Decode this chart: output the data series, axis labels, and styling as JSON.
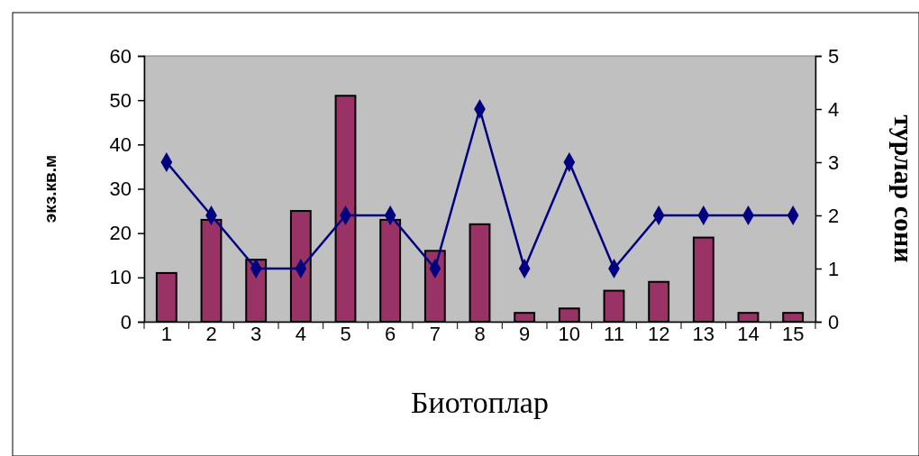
{
  "chart_data": {
    "type": "bar",
    "xlabel": "Биотоплар",
    "ylabel": "экз.кв.м",
    "y2label": "турлар сони",
    "categories": [
      "1",
      "2",
      "3",
      "4",
      "5",
      "6",
      "7",
      "8",
      "9",
      "10",
      "11",
      "12",
      "13",
      "14",
      "15"
    ],
    "series": [
      {
        "color": "#993366",
        "values": [
          11,
          23,
          14,
          25,
          51,
          23,
          16,
          22,
          2,
          3,
          7,
          9,
          19,
          2,
          2
        ]
      },
      {
        "type": "line",
        "axis": "y2",
        "color": "#000080",
        "marker": "diamond",
        "values": [
          3,
          2,
          1,
          1,
          2,
          2,
          1,
          4,
          1,
          3,
          1,
          2,
          2,
          2,
          2
        ]
      }
    ],
    "ylim": [
      0,
      60
    ],
    "yticks": [
      0,
      10,
      20,
      30,
      40,
      50,
      60
    ],
    "y2lim": [
      0,
      5
    ],
    "y2ticks": [
      0,
      1,
      2,
      3,
      4,
      5
    ],
    "grid": false,
    "legend": false
  }
}
